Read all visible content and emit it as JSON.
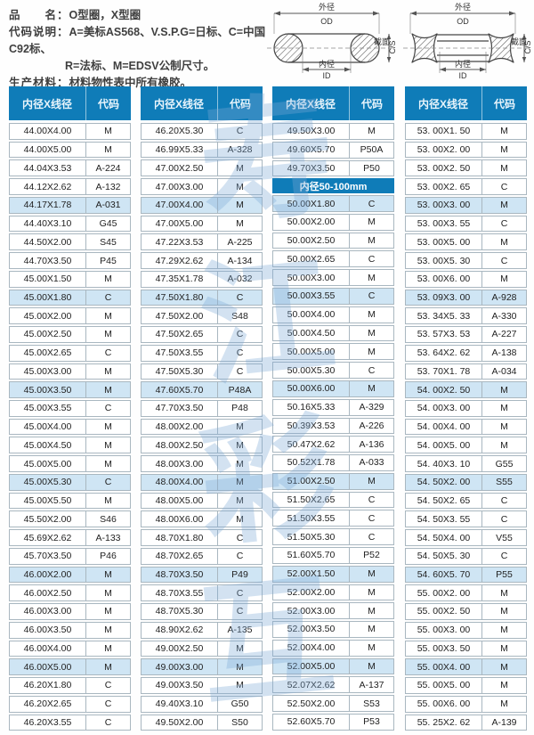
{
  "info": {
    "product_label": "品　　名：",
    "product_value": "O型圈，X型圈",
    "code_label": "代码说明：",
    "code_line1": "A=美标AS568、V.S.P.G=日标、C=中国C92标、",
    "code_line2": "R=法标、M=EDSV公制尺寸。",
    "material_label": "生产材料：",
    "material_value": "材料物性表中所有橡胶。"
  },
  "diagram_labels": {
    "od_cn": "外径",
    "od_en": "OD",
    "id_cn": "内径",
    "id_en": "ID",
    "cs_cn": "截面",
    "cs_en": "C/S"
  },
  "watermark_chars": [
    "寿",
    "江",
    "彩",
    "互"
  ],
  "colors": {
    "header_blue": "#0f7cb8",
    "row_highlight": "#cfe5f4",
    "row_border": "#a9b7c0"
  },
  "tables": [
    {
      "headers": [
        "内径X线径",
        "代码"
      ],
      "rows": [
        {
          "s": "44.00X4.00",
          "c": "M"
        },
        {
          "s": "44.00X5.00",
          "c": "M"
        },
        {
          "s": "44.04X3.53",
          "c": "A-224"
        },
        {
          "s": "44.12X2.62",
          "c": "A-132"
        },
        {
          "s": "44.17X1.78",
          "c": "A-031",
          "h": 1
        },
        {
          "s": "44.40X3.10",
          "c": "G45"
        },
        {
          "s": "44.50X2.00",
          "c": "S45"
        },
        {
          "s": "44.70X3.50",
          "c": "P45"
        },
        {
          "s": "45.00X1.50",
          "c": "M"
        },
        {
          "s": "45.00X1.80",
          "c": "C",
          "h": 1
        },
        {
          "s": "45.00X2.00",
          "c": "M"
        },
        {
          "s": "45.00X2.50",
          "c": "M"
        },
        {
          "s": "45.00X2.65",
          "c": "C"
        },
        {
          "s": "45.00X3.00",
          "c": "M"
        },
        {
          "s": "45.00X3.50",
          "c": "M",
          "h": 1
        },
        {
          "s": "45.00X3.55",
          "c": "C"
        },
        {
          "s": "45.00X4.00",
          "c": "M"
        },
        {
          "s": "45.00X4.50",
          "c": "M"
        },
        {
          "s": "45.00X5.00",
          "c": "M"
        },
        {
          "s": "45.00X5.30",
          "c": "C",
          "h": 1
        },
        {
          "s": "45.00X5.50",
          "c": "M"
        },
        {
          "s": "45.50X2.00",
          "c": "S46"
        },
        {
          "s": "45.69X2.62",
          "c": "A-133"
        },
        {
          "s": "45.70X3.50",
          "c": "P46"
        },
        {
          "s": "46.00X2.00",
          "c": "M",
          "h": 1
        },
        {
          "s": "46.00X2.50",
          "c": "M"
        },
        {
          "s": "46.00X3.00",
          "c": "M"
        },
        {
          "s": "46.00X3.50",
          "c": "M"
        },
        {
          "s": "46.00X4.00",
          "c": "M"
        },
        {
          "s": "46.00X5.00",
          "c": "M",
          "h": 1
        },
        {
          "s": "46.20X1.80",
          "c": "C"
        },
        {
          "s": "46.20X2.65",
          "c": "C"
        },
        {
          "s": "46.20X3.55",
          "c": "C"
        }
      ]
    },
    {
      "headers": [
        "内径X线径",
        "代码"
      ],
      "rows": [
        {
          "s": "46.20X5.30",
          "c": "C"
        },
        {
          "s": "46.99X5.33",
          "c": "A-328"
        },
        {
          "s": "47.00X2.50",
          "c": "M"
        },
        {
          "s": "47.00X3.00",
          "c": "M"
        },
        {
          "s": "47.00X4.00",
          "c": "M",
          "h": 1
        },
        {
          "s": "47.00X5.00",
          "c": "M"
        },
        {
          "s": "47.22X3.53",
          "c": "A-225"
        },
        {
          "s": "47.29X2.62",
          "c": "A-134"
        },
        {
          "s": "47.35X1.78",
          "c": "A-032"
        },
        {
          "s": "47.50X1.80",
          "c": "C",
          "h": 1
        },
        {
          "s": "47.50X2.00",
          "c": "S48"
        },
        {
          "s": "47.50X2.65",
          "c": "C"
        },
        {
          "s": "47.50X3.55",
          "c": "C"
        },
        {
          "s": "47.50X5.30",
          "c": "C"
        },
        {
          "s": "47.60X5.70",
          "c": "P48A",
          "h": 1
        },
        {
          "s": "47.70X3.50",
          "c": "P48"
        },
        {
          "s": "48.00X2.00",
          "c": "M"
        },
        {
          "s": "48.00X2.50",
          "c": "M"
        },
        {
          "s": "48.00X3.00",
          "c": "M"
        },
        {
          "s": "48.00X4.00",
          "c": "M",
          "h": 1
        },
        {
          "s": "48.00X5.00",
          "c": "M"
        },
        {
          "s": "48.00X6.00",
          "c": "M"
        },
        {
          "s": "48.70X1.80",
          "c": "C"
        },
        {
          "s": "48.70X2.65",
          "c": "C"
        },
        {
          "s": "48.70X3.50",
          "c": "P49",
          "h": 1
        },
        {
          "s": "48.70X3.55",
          "c": "C"
        },
        {
          "s": "48.70X5.30",
          "c": "C"
        },
        {
          "s": "48.90X2.62",
          "c": "A-135"
        },
        {
          "s": "49.00X2.50",
          "c": "M"
        },
        {
          "s": "49.00X3.00",
          "c": "M",
          "h": 1
        },
        {
          "s": "49.00X3.50",
          "c": "M"
        },
        {
          "s": "49.40X3.10",
          "c": "G50"
        },
        {
          "s": "49.50X2.00",
          "c": "S50"
        }
      ]
    },
    {
      "headers": [
        "内径X线径",
        "代码"
      ],
      "rows": [
        {
          "s": "49.50X3.00",
          "c": "M"
        },
        {
          "s": "49.60X5.70",
          "c": "P50A"
        },
        {
          "s": "49.70X3.50",
          "c": "P50"
        },
        {
          "band": "内径50-100mm"
        },
        {
          "s": "50.00X1.80",
          "c": "C",
          "h": 1
        },
        {
          "s": "50.00X2.00",
          "c": "M"
        },
        {
          "s": "50.00X2.50",
          "c": "M"
        },
        {
          "s": "50.00X2.65",
          "c": "C"
        },
        {
          "s": "50.00X3.00",
          "c": "M"
        },
        {
          "s": "50.00X3.55",
          "c": "C",
          "h": 1
        },
        {
          "s": "50.00X4.00",
          "c": "M"
        },
        {
          "s": "50.00X4.50",
          "c": "M"
        },
        {
          "s": "50.00X5.00",
          "c": "M"
        },
        {
          "s": "50.00X5.30",
          "c": "C"
        },
        {
          "s": "50.00X6.00",
          "c": "M",
          "h": 1
        },
        {
          "s": "50.16X5.33",
          "c": "A-329"
        },
        {
          "s": "50.39X3.53",
          "c": "A-226"
        },
        {
          "s": "50.47X2.62",
          "c": "A-136"
        },
        {
          "s": "50.52X1.78",
          "c": "A-033"
        },
        {
          "s": "51.00X2.50",
          "c": "M",
          "h": 1
        },
        {
          "s": "51.50X2.65",
          "c": "C"
        },
        {
          "s": "51.50X3.55",
          "c": "C"
        },
        {
          "s": "51.50X5.30",
          "c": "C"
        },
        {
          "s": "51.60X5.70",
          "c": "P52"
        },
        {
          "s": "52.00X1.50",
          "c": "M",
          "h": 1
        },
        {
          "s": "52.00X2.00",
          "c": "M"
        },
        {
          "s": "52.00X3.00",
          "c": "M"
        },
        {
          "s": "52.00X3.50",
          "c": "M"
        },
        {
          "s": "52.00X4.00",
          "c": "M"
        },
        {
          "s": "52.00X5.00",
          "c": "M",
          "h": 1
        },
        {
          "s": "52.07X2.62",
          "c": "A-137"
        },
        {
          "s": "52.50X2.00",
          "c": "S53"
        },
        {
          "s": "52.60X5.70",
          "c": "P53"
        }
      ]
    },
    {
      "headers": [
        "内径X线径",
        "代码"
      ],
      "rows": [
        {
          "s": "53. 00X1. 50",
          "c": "M"
        },
        {
          "s": "53. 00X2. 00",
          "c": "M"
        },
        {
          "s": "53. 00X2. 50",
          "c": "M"
        },
        {
          "s": "53. 00X2. 65",
          "c": "C"
        },
        {
          "s": "53. 00X3. 00",
          "c": "M",
          "h": 1
        },
        {
          "s": "53. 00X3. 55",
          "c": "C"
        },
        {
          "s": "53. 00X5. 00",
          "c": "M"
        },
        {
          "s": "53. 00X5. 30",
          "c": "C"
        },
        {
          "s": "53. 00X6. 00",
          "c": "M"
        },
        {
          "s": "53. 09X3. 00",
          "c": "A-928",
          "h": 1
        },
        {
          "s": "53. 34X5. 33",
          "c": "A-330"
        },
        {
          "s": "53. 57X3. 53",
          "c": "A-227"
        },
        {
          "s": "53. 64X2. 62",
          "c": "A-138"
        },
        {
          "s": "53. 70X1. 78",
          "c": "A-034"
        },
        {
          "s": "54. 00X2. 50",
          "c": "M",
          "h": 1
        },
        {
          "s": "54. 00X3. 00",
          "c": "M"
        },
        {
          "s": "54. 00X4. 00",
          "c": "M"
        },
        {
          "s": "54. 00X5. 00",
          "c": "M"
        },
        {
          "s": "54. 40X3. 10",
          "c": "G55"
        },
        {
          "s": "54. 50X2. 00",
          "c": "S55",
          "h": 1
        },
        {
          "s": "54. 50X2. 65",
          "c": "C"
        },
        {
          "s": "54. 50X3. 55",
          "c": "C"
        },
        {
          "s": "54. 50X4. 00",
          "c": "V55"
        },
        {
          "s": "54. 50X5. 30",
          "c": "C"
        },
        {
          "s": "54. 60X5. 70",
          "c": "P55",
          "h": 1
        },
        {
          "s": "55. 00X2. 00",
          "c": "M"
        },
        {
          "s": "55. 00X2. 50",
          "c": "M"
        },
        {
          "s": "55. 00X3. 00",
          "c": "M"
        },
        {
          "s": "55. 00X3. 50",
          "c": "M"
        },
        {
          "s": "55. 00X4. 00",
          "c": "M",
          "h": 1
        },
        {
          "s": "55. 00X5. 00",
          "c": "M"
        },
        {
          "s": "55. 00X6. 00",
          "c": "M"
        },
        {
          "s": "55. 25X2. 62",
          "c": "A-139"
        }
      ]
    }
  ]
}
